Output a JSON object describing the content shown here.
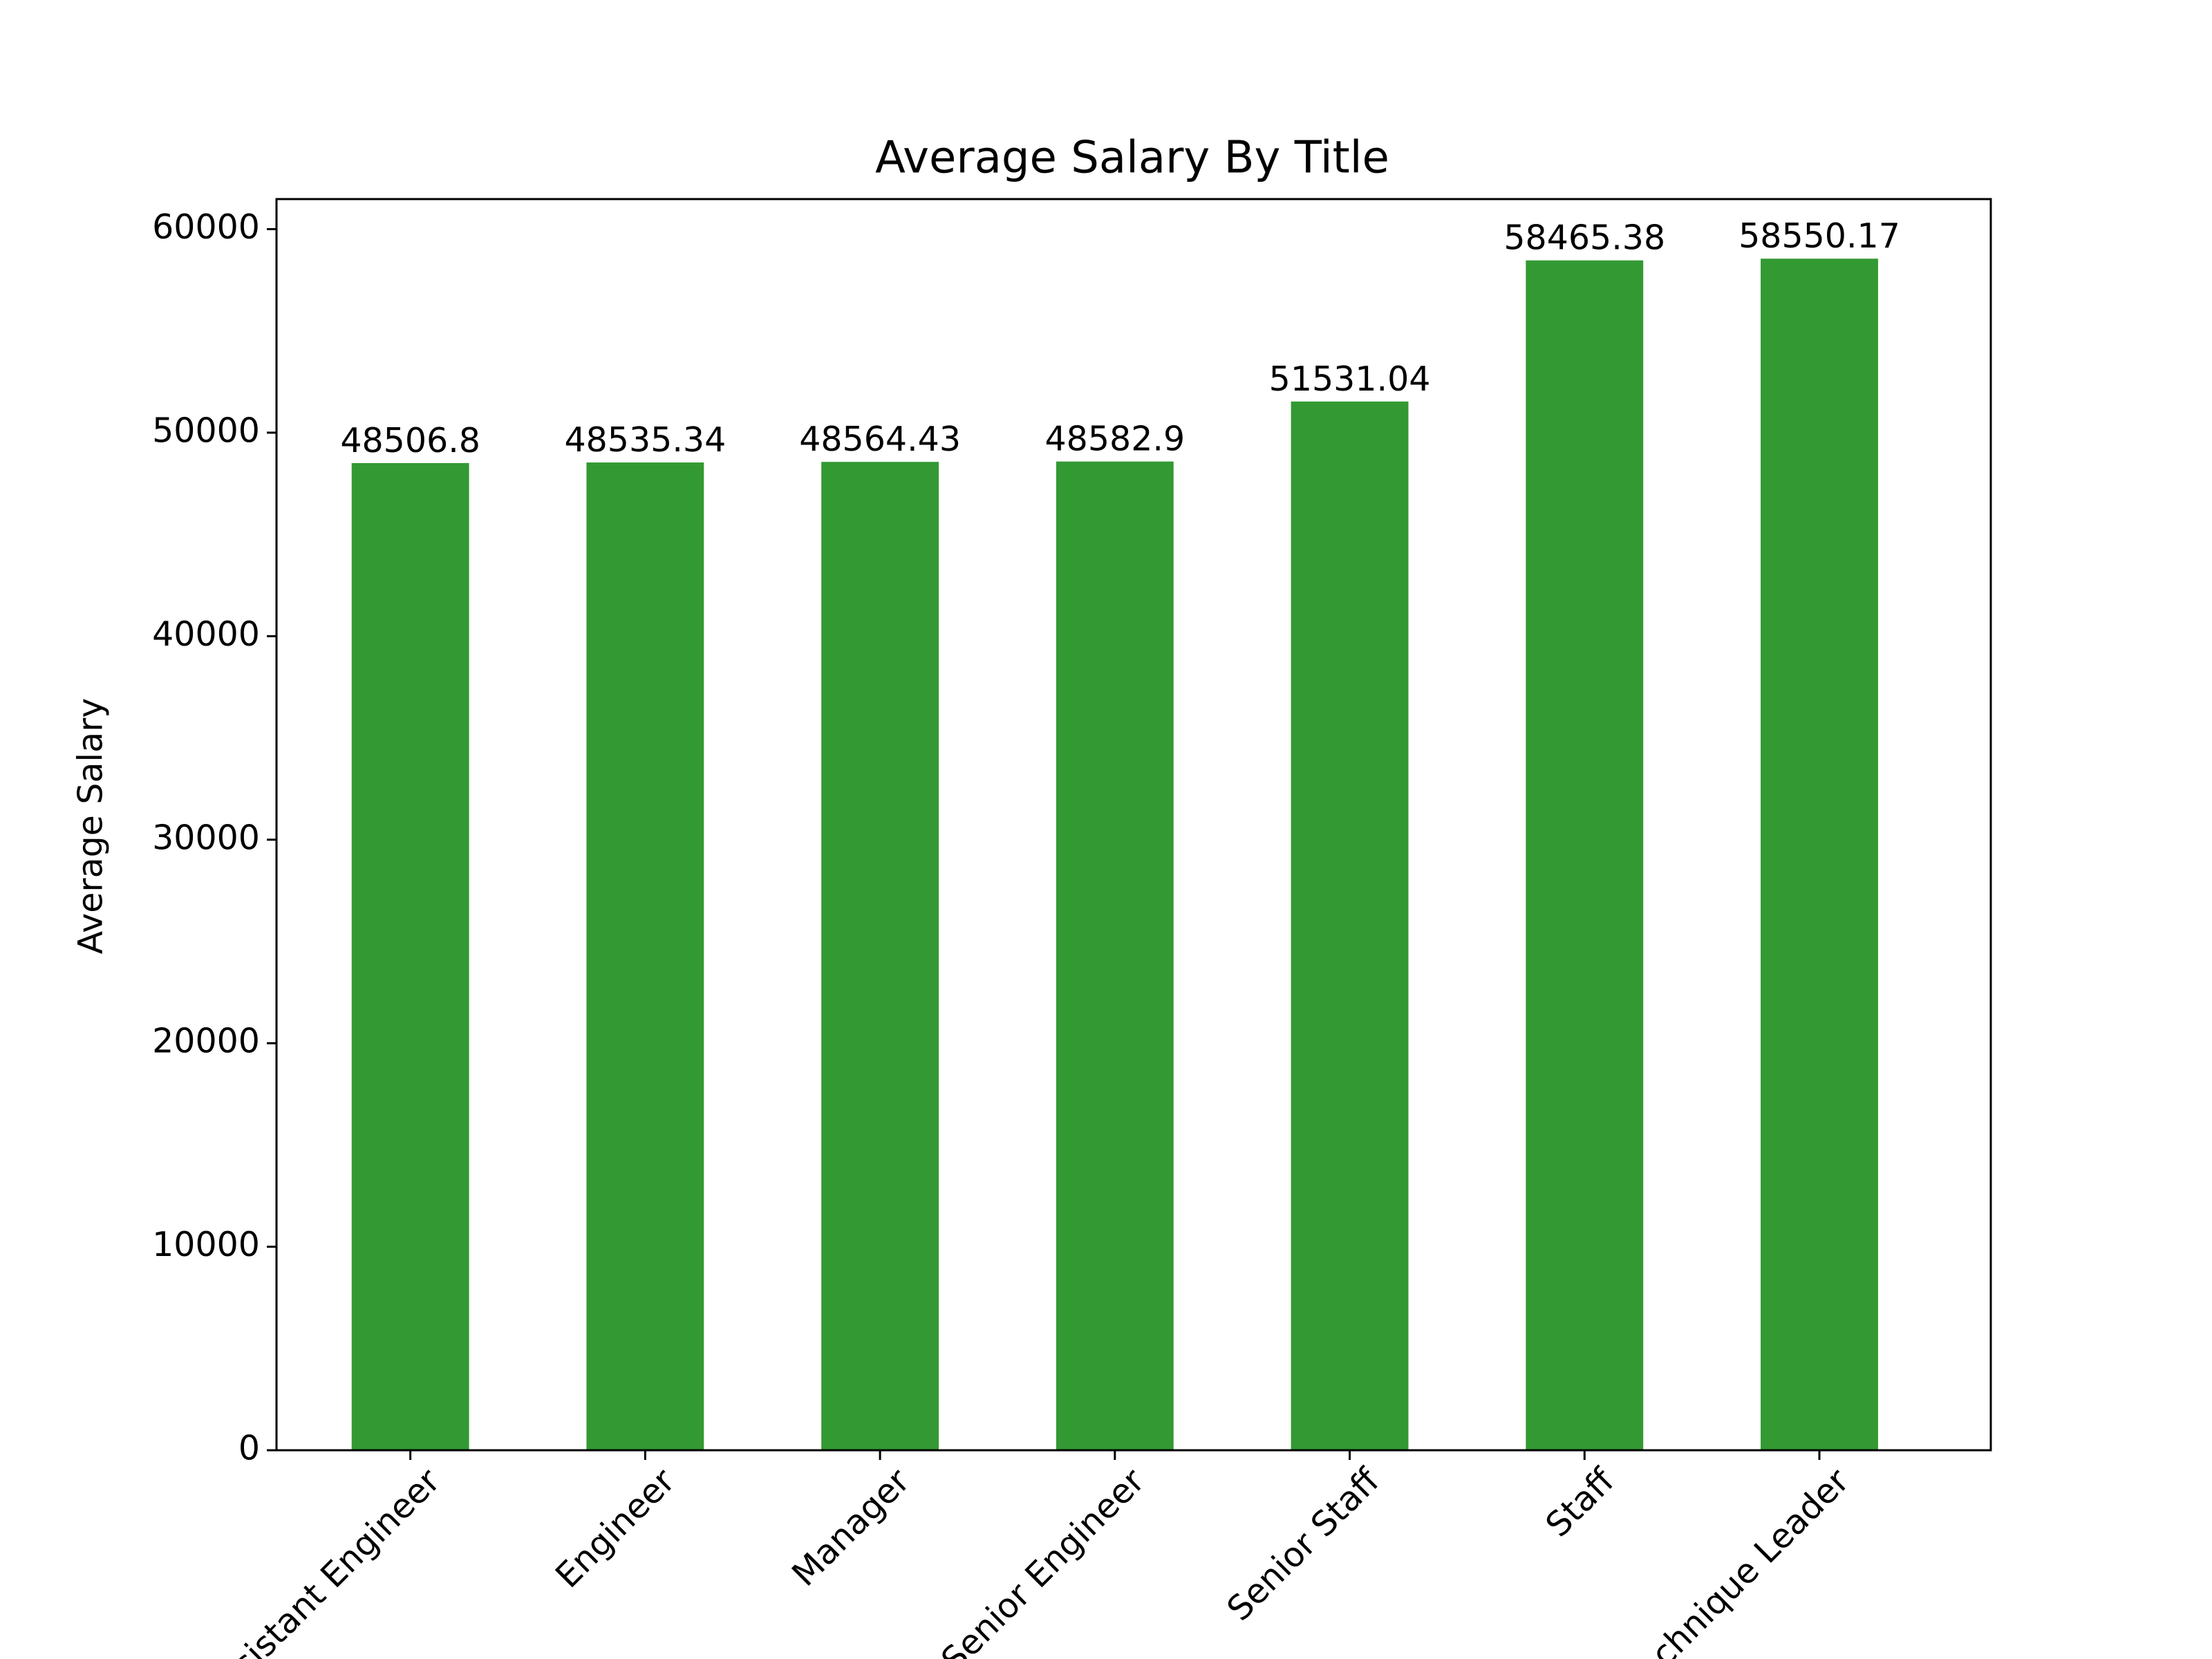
{
  "chart_data": {
    "type": "bar",
    "title": "Average Salary By Title",
    "y_label": "Average Salary",
    "categories": [
      "Assistant Engineer",
      "Engineer",
      "Manager",
      "Senior Engineer",
      "Senior Staff",
      "Staff",
      "Technique Leader"
    ],
    "values": [
      48506.8,
      48535.34,
      48564.43,
      48582.9,
      51531.04,
      58465.38,
      58550.17
    ],
    "color": "#339933",
    "ylim": [
      0,
      61477.68
    ],
    "yticks": [
      0,
      10000,
      20000,
      30000,
      40000,
      50000,
      60000
    ],
    "grid": false
  }
}
